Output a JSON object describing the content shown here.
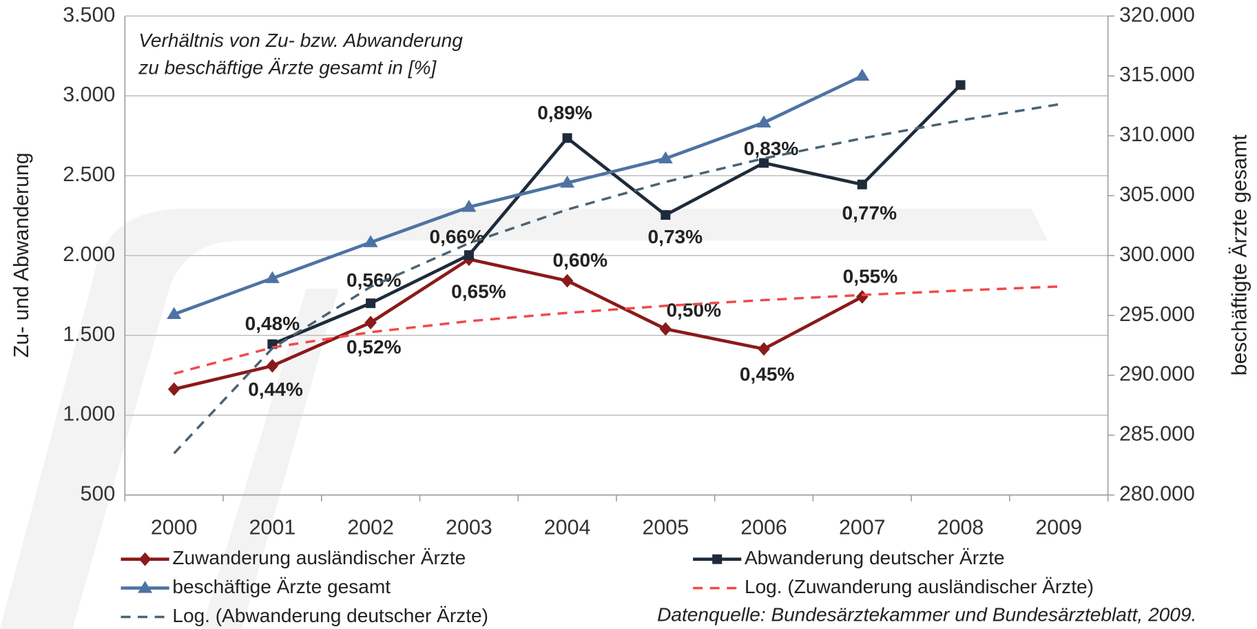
{
  "chart_data": {
    "type": "line",
    "annotation": [
      "Verhältnis von Zu- bzw. Abwanderung",
      "zu beschäftige Ärzte gesamt in [%]"
    ],
    "source": "Datenquelle: Bundesärztekammer und Bundesärzteblatt, 2009.",
    "ylabel": "Zu- und Abwanderung",
    "y2label": "beschäftigte Ärzte gesamt",
    "categories": [
      "2000",
      "2001",
      "2002",
      "2003",
      "2004",
      "2005",
      "2006",
      "2007",
      "2008",
      "2009"
    ],
    "ylim": [
      500,
      3500
    ],
    "yticks": [
      {
        "value": 500,
        "label": "500"
      },
      {
        "value": 1000,
        "label": "1.000"
      },
      {
        "value": 1500,
        "label": "1.500"
      },
      {
        "value": 2000,
        "label": "2.000"
      },
      {
        "value": 2500,
        "label": "2.500"
      },
      {
        "value": 3000,
        "label": "3.000"
      },
      {
        "value": 3500,
        "label": "3.500"
      }
    ],
    "y2lim": [
      280000,
      320000
    ],
    "y2ticks": [
      {
        "value": 280000,
        "label": "280.000"
      },
      {
        "value": 285000,
        "label": "285.000"
      },
      {
        "value": 290000,
        "label": "290.000"
      },
      {
        "value": 295000,
        "label": "295.000"
      },
      {
        "value": 300000,
        "label": "300.000"
      },
      {
        "value": 305000,
        "label": "305.000"
      },
      {
        "value": 310000,
        "label": "310.000"
      },
      {
        "value": 315000,
        "label": "315.000"
      },
      {
        "value": 320000,
        "label": "320.000"
      }
    ],
    "grid": true,
    "series": [
      {
        "name": "Zuwanderung ausländischer Ärzte",
        "color": "#8b1a1a",
        "marker": "diamond",
        "dash": false,
        "values": [
          1163,
          1309,
          1580,
          1977,
          1842,
          1540,
          1415,
          1741,
          null,
          null
        ],
        "ratio_labels": [
          null,
          "0,44%",
          "0,52%",
          "0,65%",
          "0,60%",
          "0,50%",
          "0,45%",
          "0,55%",
          null,
          null
        ]
      },
      {
        "name": "Abwanderung deutscher Ärzte",
        "color": "#1e2b3a",
        "marker": "square",
        "dash": false,
        "values": [
          null,
          1445,
          1701,
          2003,
          2736,
          2254,
          2580,
          2445,
          3068,
          null
        ],
        "ratio_labels": [
          null,
          "0,48%",
          "0,56%",
          "0,66%",
          "0,89%",
          "0,73%",
          "0,83%",
          "0,77%",
          null,
          null
        ]
      },
      {
        "name": "beschäftige Ärzte gesamt",
        "color": "#4e73a3",
        "marker": "triangle",
        "dash": false,
        "axis": "y2",
        "values": [
          295100,
          298100,
          301100,
          304050,
          306070,
          308100,
          311100,
          315000,
          null,
          null
        ]
      },
      {
        "name": "Log. (Zuwanderung ausländischer Ärzte)",
        "color": "#f04a4a",
        "marker": "none",
        "dash": true,
        "values": [
          1260,
          1424,
          1520,
          1589,
          1641,
          1685,
          1721,
          1753,
          1781,
          1806
        ]
      },
      {
        "name": "Log. (Abwanderung deutscher Ärzte)",
        "color": "#4a6373",
        "marker": "none",
        "dash": true,
        "values": [
          761,
          1419,
          1804,
          2077,
          2288,
          2461,
          2608,
          2734,
          2846,
          2947
        ]
      }
    ]
  }
}
